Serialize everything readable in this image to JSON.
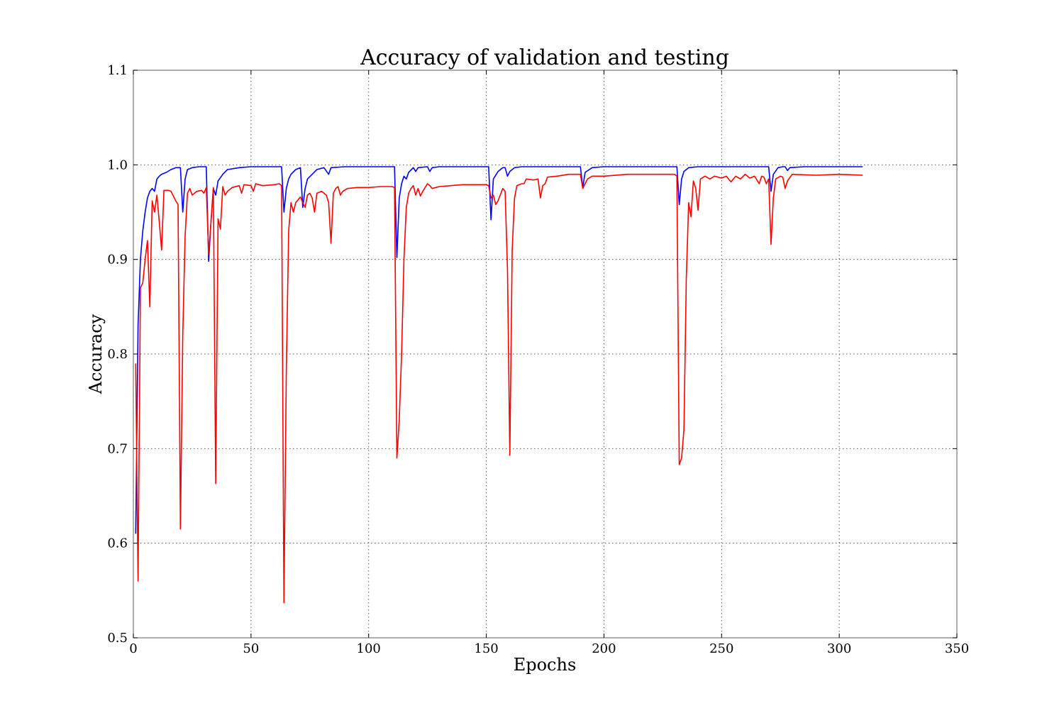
{
  "chart_data": {
    "type": "line",
    "title": "Accuracy of validation and testing",
    "xlabel": "Epochs",
    "ylabel": "Accuracy",
    "xlim": [
      0,
      350
    ],
    "ylim": [
      0.5,
      1.1
    ],
    "grid": true,
    "x_ticks": [
      "0",
      "50",
      "100",
      "150",
      "200",
      "250",
      "300",
      "350"
    ],
    "y_ticks": [
      "0.5",
      "0.6",
      "0.7",
      "0.8",
      "0.9",
      "1.0",
      "1.1"
    ],
    "series": [
      {
        "color": "#0000ff",
        "points": [
          [
            1,
            0.61
          ],
          [
            2,
            0.83
          ],
          [
            3,
            0.9
          ],
          [
            4,
            0.93
          ],
          [
            5,
            0.95
          ],
          [
            6,
            0.965
          ],
          [
            7,
            0.972
          ],
          [
            8,
            0.975
          ],
          [
            9,
            0.972
          ],
          [
            10,
            0.985
          ],
          [
            11,
            0.988
          ],
          [
            12,
            0.99
          ],
          [
            14,
            0.992
          ],
          [
            16,
            0.995
          ],
          [
            18,
            0.997
          ],
          [
            19,
            0.997
          ],
          [
            20,
            0.997
          ],
          [
            21,
            0.95
          ],
          [
            22,
            0.985
          ],
          [
            23,
            0.995
          ],
          [
            25,
            0.997
          ],
          [
            28,
            0.998
          ],
          [
            31,
            0.998
          ],
          [
            32,
            0.898
          ],
          [
            33,
            0.94
          ],
          [
            34,
            0.975
          ],
          [
            35,
            0.968
          ],
          [
            36,
            0.983
          ],
          [
            38,
            0.99
          ],
          [
            40,
            0.995
          ],
          [
            45,
            0.997
          ],
          [
            50,
            0.998
          ],
          [
            55,
            0.998
          ],
          [
            60,
            0.998
          ],
          [
            62,
            0.998
          ],
          [
            63,
            0.998
          ],
          [
            64,
            0.95
          ],
          [
            65,
            0.975
          ],
          [
            66,
            0.985
          ],
          [
            67,
            0.99
          ],
          [
            69,
            0.995
          ],
          [
            71,
            0.997
          ],
          [
            72,
            0.955
          ],
          [
            73,
            0.975
          ],
          [
            74,
            0.985
          ],
          [
            76,
            0.99
          ],
          [
            78,
            0.995
          ],
          [
            81,
            0.997
          ],
          [
            83,
            0.99
          ],
          [
            84,
            0.997
          ],
          [
            90,
            0.998
          ],
          [
            100,
            0.998
          ],
          [
            105,
            0.998
          ],
          [
            110,
            0.998
          ],
          [
            111,
            0.998
          ],
          [
            112,
            0.902
          ],
          [
            113,
            0.965
          ],
          [
            114,
            0.98
          ],
          [
            115,
            0.988
          ],
          [
            116,
            0.985
          ],
          [
            117,
            0.992
          ],
          [
            119,
            0.997
          ],
          [
            120,
            0.993
          ],
          [
            121,
            0.997
          ],
          [
            125,
            0.998
          ],
          [
            126,
            0.993
          ],
          [
            127,
            0.997
          ],
          [
            130,
            0.998
          ],
          [
            140,
            0.998
          ],
          [
            150,
            0.998
          ],
          [
            151,
            0.998
          ],
          [
            152,
            0.942
          ],
          [
            153,
            0.985
          ],
          [
            155,
            0.993
          ],
          [
            157,
            0.997
          ],
          [
            158,
            0.997
          ],
          [
            159,
            0.988
          ],
          [
            160,
            0.993
          ],
          [
            162,
            0.997
          ],
          [
            165,
            0.998
          ],
          [
            170,
            0.998
          ],
          [
            175,
            0.998
          ],
          [
            180,
            0.998
          ],
          [
            185,
            0.998
          ],
          [
            190,
            0.998
          ],
          [
            191,
            0.976
          ],
          [
            192,
            0.992
          ],
          [
            195,
            0.997
          ],
          [
            200,
            0.998
          ],
          [
            210,
            0.998
          ],
          [
            220,
            0.998
          ],
          [
            230,
            0.998
          ],
          [
            231,
            0.998
          ],
          [
            232,
            0.958
          ],
          [
            233,
            0.985
          ],
          [
            234,
            0.993
          ],
          [
            236,
            0.997
          ],
          [
            240,
            0.998
          ],
          [
            250,
            0.998
          ],
          [
            260,
            0.998
          ],
          [
            269,
            0.998
          ],
          [
            270,
            0.998
          ],
          [
            271,
            0.972
          ],
          [
            272,
            0.99
          ],
          [
            274,
            0.997
          ],
          [
            276,
            0.998
          ],
          [
            277,
            0.998
          ],
          [
            278,
            0.994
          ],
          [
            279,
            0.997
          ],
          [
            285,
            0.998
          ],
          [
            290,
            0.998
          ],
          [
            300,
            0.998
          ],
          [
            310,
            0.998
          ]
        ]
      },
      {
        "color": "#ff0000",
        "points": [
          [
            1,
            0.79
          ],
          [
            2,
            0.56
          ],
          [
            3,
            0.87
          ],
          [
            4,
            0.875
          ],
          [
            5,
            0.9
          ],
          [
            6,
            0.92
          ],
          [
            7,
            0.85
          ],
          [
            8,
            0.962
          ],
          [
            9,
            0.95
          ],
          [
            10,
            0.968
          ],
          [
            11,
            0.94
          ],
          [
            12,
            0.91
          ],
          [
            13,
            0.973
          ],
          [
            15,
            0.973
          ],
          [
            16,
            0.972
          ],
          [
            18,
            0.962
          ],
          [
            19,
            0.958
          ],
          [
            20,
            0.615
          ],
          [
            21,
            0.82
          ],
          [
            22,
            0.925
          ],
          [
            23,
            0.97
          ],
          [
            24,
            0.975
          ],
          [
            25,
            0.968
          ],
          [
            27,
            0.972
          ],
          [
            29,
            0.973
          ],
          [
            30,
            0.97
          ],
          [
            31,
            0.976
          ],
          [
            32,
            0.905
          ],
          [
            33,
            0.94
          ],
          [
            34,
            0.976
          ],
          [
            35,
            0.663
          ],
          [
            36,
            0.943
          ],
          [
            37,
            0.932
          ],
          [
            38,
            0.977
          ],
          [
            39,
            0.968
          ],
          [
            40,
            0.972
          ],
          [
            42,
            0.976
          ],
          [
            45,
            0.978
          ],
          [
            46,
            0.97
          ],
          [
            47,
            0.979
          ],
          [
            50,
            0.978
          ],
          [
            51,
            0.972
          ],
          [
            52,
            0.98
          ],
          [
            55,
            0.978
          ],
          [
            60,
            0.979
          ],
          [
            62,
            0.98
          ],
          [
            63,
            0.978
          ],
          [
            64,
            0.537
          ],
          [
            65,
            0.78
          ],
          [
            66,
            0.93
          ],
          [
            67,
            0.96
          ],
          [
            68,
            0.95
          ],
          [
            69,
            0.96
          ],
          [
            70,
            0.963
          ],
          [
            71,
            0.966
          ],
          [
            72,
            0.96
          ],
          [
            73,
            0.955
          ],
          [
            74,
            0.968
          ],
          [
            75,
            0.97
          ],
          [
            76,
            0.965
          ],
          [
            77,
            0.95
          ],
          [
            78,
            0.97
          ],
          [
            80,
            0.972
          ],
          [
            82,
            0.968
          ],
          [
            83,
            0.96
          ],
          [
            84,
            0.917
          ],
          [
            85,
            0.97
          ],
          [
            86,
            0.975
          ],
          [
            87,
            0.977
          ],
          [
            88,
            0.968
          ],
          [
            89,
            0.972
          ],
          [
            91,
            0.975
          ],
          [
            95,
            0.976
          ],
          [
            100,
            0.976
          ],
          [
            105,
            0.977
          ],
          [
            110,
            0.977
          ],
          [
            111,
            0.976
          ],
          [
            112,
            0.69
          ],
          [
            113,
            0.73
          ],
          [
            114,
            0.8
          ],
          [
            115,
            0.9
          ],
          [
            116,
            0.955
          ],
          [
            117,
            0.97
          ],
          [
            118,
            0.975
          ],
          [
            119,
            0.978
          ],
          [
            120,
            0.968
          ],
          [
            121,
            0.975
          ],
          [
            122,
            0.967
          ],
          [
            123,
            0.972
          ],
          [
            125,
            0.98
          ],
          [
            126,
            0.978
          ],
          [
            127,
            0.975
          ],
          [
            130,
            0.977
          ],
          [
            140,
            0.979
          ],
          [
            150,
            0.979
          ],
          [
            151,
            0.978
          ],
          [
            152,
            0.965
          ],
          [
            153,
            0.968
          ],
          [
            154,
            0.958
          ],
          [
            155,
            0.962
          ],
          [
            157,
            0.975
          ],
          [
            158,
            0.972
          ],
          [
            159,
            0.89
          ],
          [
            160,
            0.693
          ],
          [
            161,
            0.91
          ],
          [
            162,
            0.965
          ],
          [
            163,
            0.978
          ],
          [
            165,
            0.98
          ],
          [
            166,
            0.98
          ],
          [
            167,
            0.985
          ],
          [
            170,
            0.984
          ],
          [
            172,
            0.985
          ],
          [
            173,
            0.965
          ],
          [
            174,
            0.978
          ],
          [
            175,
            0.98
          ],
          [
            176,
            0.987
          ],
          [
            180,
            0.988
          ],
          [
            185,
            0.99
          ],
          [
            190,
            0.99
          ],
          [
            191,
            0.975
          ],
          [
            192,
            0.98
          ],
          [
            193,
            0.985
          ],
          [
            195,
            0.988
          ],
          [
            200,
            0.988
          ],
          [
            210,
            0.99
          ],
          [
            220,
            0.99
          ],
          [
            230,
            0.99
          ],
          [
            231,
            0.988
          ],
          [
            232,
            0.683
          ],
          [
            233,
            0.69
          ],
          [
            234,
            0.72
          ],
          [
            235,
            0.88
          ],
          [
            236,
            0.96
          ],
          [
            237,
            0.945
          ],
          [
            238,
            0.983
          ],
          [
            239,
            0.975
          ],
          [
            240,
            0.952
          ],
          [
            241,
            0.985
          ],
          [
            243,
            0.988
          ],
          [
            245,
            0.985
          ],
          [
            247,
            0.988
          ],
          [
            250,
            0.986
          ],
          [
            252,
            0.988
          ],
          [
            254,
            0.982
          ],
          [
            256,
            0.988
          ],
          [
            258,
            0.985
          ],
          [
            260,
            0.99
          ],
          [
            262,
            0.986
          ],
          [
            264,
            0.988
          ],
          [
            266,
            0.98
          ],
          [
            267,
            0.988
          ],
          [
            268,
            0.987
          ],
          [
            269,
            0.98
          ],
          [
            270,
            0.985
          ],
          [
            271,
            0.916
          ],
          [
            272,
            0.965
          ],
          [
            273,
            0.985
          ],
          [
            275,
            0.988
          ],
          [
            276,
            0.987
          ],
          [
            277,
            0.975
          ],
          [
            278,
            0.983
          ],
          [
            280,
            0.99
          ],
          [
            290,
            0.989
          ],
          [
            300,
            0.99
          ],
          [
            310,
            0.989
          ]
        ]
      }
    ]
  }
}
